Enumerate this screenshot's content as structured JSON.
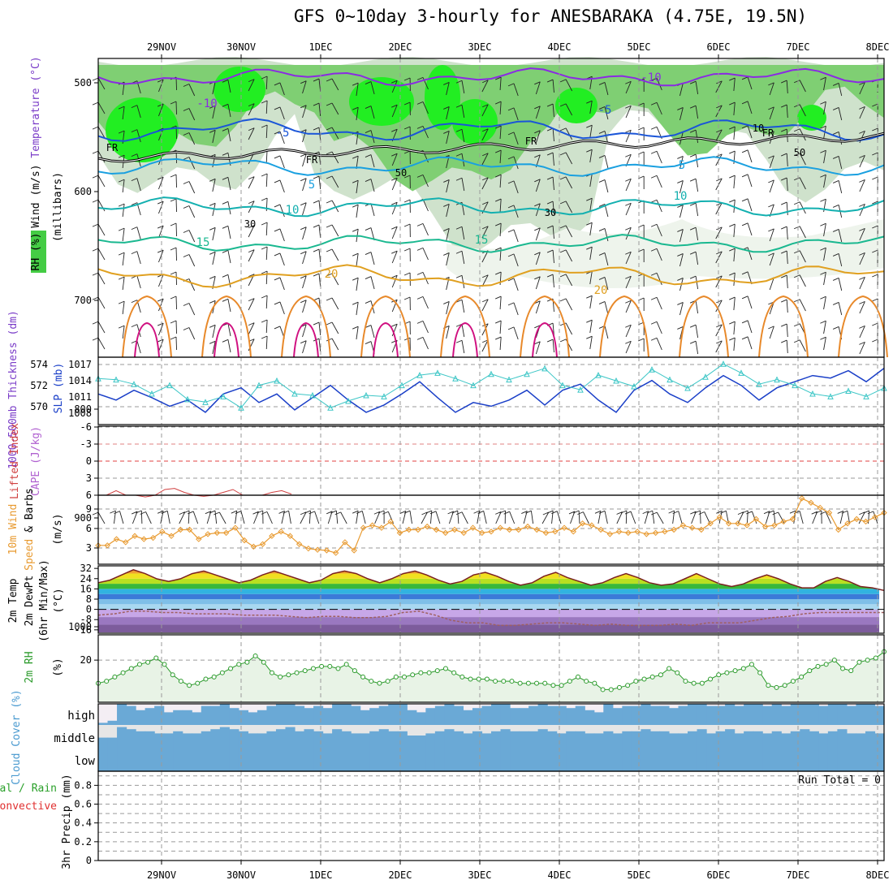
{
  "title": "GFS 0~10day 3-hourly for ANESBARAKA (4.75E, 19.5N)",
  "chart_data": [
    {
      "panel": "upper-air",
      "type": "contour",
      "dates": [
        "29NOV",
        "30NOV",
        "1DEC",
        "2DEC",
        "3DEC",
        "4DEC",
        "5DEC",
        "6DEC",
        "7DEC",
        "8DEC"
      ],
      "ylabel_parts": [
        "Wind (m/s)",
        "Temperature (°C)",
        "(millibars)",
        "RH (%)"
      ],
      "y_ticks": [
        "500",
        "600",
        "700",
        "800",
        "900",
        "1000"
      ],
      "freezing_label": "FR",
      "contour_labels": [
        "-10",
        "-5",
        "5",
        "10",
        "15",
        "20"
      ],
      "rh_labels": [
        "10",
        "30",
        "50"
      ]
    },
    {
      "panel": "thickness-slp",
      "type": "line",
      "ylabel_left": "1000-500mb Thickness (dm)",
      "ylabel_right": "SLP (mb)",
      "left_ticks": [
        "574",
        "572",
        "570"
      ],
      "right_ticks": [
        "1017",
        "1014",
        "1011",
        "1008"
      ],
      "thickness_dm": [
        571.5,
        571.0,
        571.8,
        571.2,
        570.5,
        571.0,
        570.0,
        571.5,
        572.0,
        570.8,
        571.5,
        570.2,
        571.2,
        572.2,
        571.0,
        570.0,
        570.6,
        571.5,
        572.5,
        571.2,
        570.0,
        570.8,
        570.5,
        571.0,
        571.8,
        570.6,
        571.8,
        572.3,
        571.0,
        570.0,
        571.8,
        572.6,
        571.5,
        570.8,
        572.0,
        573.0,
        572.2,
        571.0,
        572.0,
        572.5,
        573.0,
        572.8,
        573.4,
        572.5,
        573.6
      ],
      "slp_mb": [
        1014.2,
        1014.0,
        1013.2,
        1011.5,
        1013.0,
        1010.5,
        1010.0,
        1011.0,
        1009.0,
        1013.0,
        1013.8,
        1011.5,
        1011.2,
        1009.0,
        1010.2,
        1011.2,
        1011.0,
        1013.0,
        1014.8,
        1015.2,
        1014.2,
        1013.0,
        1015.0,
        1014.0,
        1015.0,
        1016.0,
        1013.0,
        1012.2,
        1014.8,
        1013.8,
        1012.8,
        1015.8,
        1014.0,
        1012.5,
        1014.5,
        1016.8,
        1015.2,
        1013.2,
        1014.0,
        1013.0,
        1011.5,
        1011.0,
        1012.0,
        1011.0,
        1012.5
      ],
      "ylim_thickness": [
        569,
        574.5
      ],
      "ylim_slp": [
        1006,
        1018
      ]
    },
    {
      "panel": "cape-li",
      "type": "line",
      "ylabel_left": "Lifted Index",
      "ylabel_right": "CAPE (J/kg)",
      "y_ticks": [
        "-6",
        "-3",
        "0",
        "3",
        "6"
      ],
      "lifted_index": [
        6,
        5.2,
        6,
        6,
        6.3,
        6,
        5,
        4.8,
        5.5,
        6,
        6.2,
        6,
        5.5,
        5,
        6,
        6,
        6,
        5.5,
        5.2,
        5.8
      ],
      "ylim": [
        -6,
        6
      ]
    },
    {
      "panel": "wind-10m",
      "type": "line",
      "ylabel": "10m Wind Speed & Barbs (m/s)",
      "y_ticks": [
        "3",
        "6",
        "9"
      ],
      "speed_ms": [
        3,
        3,
        4,
        3.5,
        4.5,
        4,
        4.2,
        5.2,
        4.5,
        5.5,
        5.5,
        4,
        4.8,
        5,
        5,
        5.8,
        3.8,
        2.8,
        3.2,
        4.5,
        5.2,
        4.5,
        3.2,
        2.5,
        2.3,
        2.2,
        1.8,
        3.5,
        2.2,
        5.8,
        6.2,
        5.8,
        6.8,
        5,
        5.5,
        5.5,
        6,
        5.5,
        5,
        5.5,
        5,
        5.8,
        5,
        5.2,
        5.8,
        5.5,
        5.5,
        6,
        5.5,
        5,
        5.2,
        5.8,
        5.2,
        6.5,
        6.2,
        5.5,
        4.8,
        5.2,
        5,
        5.2,
        4.8,
        5,
        5.2,
        5.5,
        6.2,
        5.8,
        5.5,
        6.5,
        7.5,
        6.5,
        6.5,
        6.2,
        7.2,
        6,
        6.2,
        6.8,
        7.2,
        10.5,
        9.8,
        9,
        8.2,
        5.5,
        6.5,
        7.2,
        6.8,
        7.5,
        8.2
      ],
      "ylim": [
        0,
        11
      ]
    },
    {
      "panel": "temp-dewpt-2m",
      "type": "area",
      "ylabel": "2m Temp 2m DewPt (6hr Min/Max) (°C)",
      "y_ticks": [
        "32",
        "24",
        "16",
        "8",
        "0",
        "-8",
        "-16"
      ],
      "temperature_c": [
        21,
        23,
        27,
        31,
        28,
        24,
        22,
        24,
        28,
        30,
        27,
        24,
        21,
        23,
        27,
        30,
        27,
        24,
        21,
        23,
        28,
        30,
        28,
        24,
        21,
        24,
        28,
        30,
        27,
        23,
        20,
        22,
        27,
        29,
        26,
        22,
        19,
        21,
        26,
        29,
        25,
        22,
        19,
        21,
        25,
        28,
        25,
        21,
        19,
        20,
        24,
        28,
        24,
        20,
        18,
        20,
        24,
        27,
        24,
        20,
        17,
        17,
        22,
        25,
        22,
        18,
        17,
        15
      ],
      "dewpoint_c": [
        -4,
        -3,
        -1,
        -1,
        -2,
        -2,
        -3,
        -3,
        -3,
        -4,
        -4,
        -4,
        -5,
        -6,
        -5,
        -5,
        -6,
        -6,
        -5,
        -2,
        -1,
        -4,
        -8,
        -10,
        -10,
        -12,
        -12,
        -11,
        -10,
        -10,
        -11,
        -12,
        -11,
        -12,
        -12,
        -12,
        -11,
        -12,
        -10,
        -10,
        -10,
        -8,
        -6,
        -5,
        -3,
        -2,
        -2,
        -2,
        -2,
        -2
      ],
      "ylim": [
        -18,
        34
      ]
    },
    {
      "panel": "rh-2m",
      "type": "area",
      "ylabel": "2m RH (%)",
      "y_ticks": [
        "20"
      ],
      "rh_pct": [
        9,
        10,
        12,
        14,
        16,
        18,
        19,
        21,
        18,
        13,
        10,
        8,
        9,
        11,
        12,
        14,
        16,
        18,
        19,
        22,
        19,
        14,
        12,
        13,
        14,
        15,
        16,
        17,
        17,
        16,
        18,
        15,
        12,
        10,
        9,
        10,
        12,
        12,
        13,
        14,
        14,
        15,
        16,
        14,
        12,
        11,
        11,
        11,
        10,
        10,
        10,
        9,
        9,
        9,
        9,
        8,
        8,
        10,
        12,
        10,
        9,
        6,
        6,
        7,
        8,
        10,
        11,
        12,
        13,
        16,
        14,
        10,
        9,
        9,
        11,
        13,
        14,
        15,
        16,
        18,
        14,
        8,
        7,
        8,
        10,
        12,
        15,
        17,
        18,
        20,
        16,
        15,
        19,
        20,
        21,
        24
      ],
      "ylim": [
        0,
        32
      ]
    },
    {
      "panel": "cloud-cover",
      "type": "heatmap",
      "ylabel": "Cloud Cover (%)",
      "layers": [
        "high",
        "middle",
        "low"
      ],
      "high_pct": [
        10,
        20,
        100,
        90,
        70,
        80,
        90,
        60,
        70,
        70,
        60,
        90,
        90,
        100,
        80,
        70,
        60,
        70,
        90,
        100,
        100,
        90,
        80,
        90,
        80,
        100,
        100,
        90,
        70,
        80,
        90,
        100,
        100,
        70,
        60,
        80,
        90,
        100,
        90,
        70,
        80,
        90,
        100,
        100,
        80,
        80,
        90,
        100,
        90,
        90,
        80,
        90,
        70,
        60,
        100,
        80,
        90,
        90,
        100,
        90,
        90,
        80,
        90,
        100,
        100,
        90,
        90,
        100,
        90,
        100,
        100,
        90,
        100,
        90,
        100,
        100,
        100,
        90,
        100,
        100,
        90,
        100,
        100,
        90
      ],
      "mid_pct": [
        40,
        40,
        90,
        80,
        70,
        70,
        60,
        60,
        70,
        60,
        60,
        70,
        80,
        90,
        80,
        70,
        60,
        60,
        70,
        80,
        90,
        70,
        80,
        70,
        60,
        80,
        70,
        60,
        60,
        70,
        80,
        70,
        70,
        50,
        50,
        60,
        70,
        80,
        70,
        60,
        70,
        60,
        70,
        80,
        70,
        70,
        70,
        80,
        70,
        60,
        70,
        70,
        60,
        60,
        70,
        60,
        70,
        70,
        80,
        70,
        70,
        60,
        60,
        70,
        80,
        60,
        70,
        80,
        60,
        70,
        70,
        60,
        70,
        60,
        70,
        80,
        70,
        60,
        70,
        80,
        60,
        60,
        70,
        60
      ],
      "low_pct": [
        100,
        100,
        100,
        100,
        100,
        100,
        100,
        100,
        100,
        100,
        100,
        100,
        100,
        100,
        100,
        100,
        100,
        100,
        100,
        100,
        100,
        100,
        100,
        100,
        100,
        100,
        100,
        100,
        100,
        100,
        100,
        100,
        100,
        100,
        100,
        100,
        100,
        100,
        100,
        100,
        100,
        100,
        100,
        100,
        100,
        100,
        100,
        100,
        100,
        100,
        100,
        100,
        100,
        100,
        100,
        100,
        100,
        100,
        100,
        100,
        100,
        100,
        100,
        100,
        100,
        100,
        100,
        100,
        100,
        100,
        100,
        100,
        100,
        100,
        100,
        100,
        100,
        100,
        100,
        100,
        100,
        100,
        100,
        100
      ]
    },
    {
      "panel": "precip-3hr",
      "type": "bar",
      "ylabel": "3hr Precip (mm)",
      "legend": [
        "Total / Rain",
        "Convective"
      ],
      "y_ticks": [
        "0",
        "0.2",
        "0.4",
        "0.6",
        "0.8"
      ],
      "ylim": [
        0,
        0.95
      ],
      "run_total_label": "Run Total = 0",
      "values": []
    }
  ]
}
